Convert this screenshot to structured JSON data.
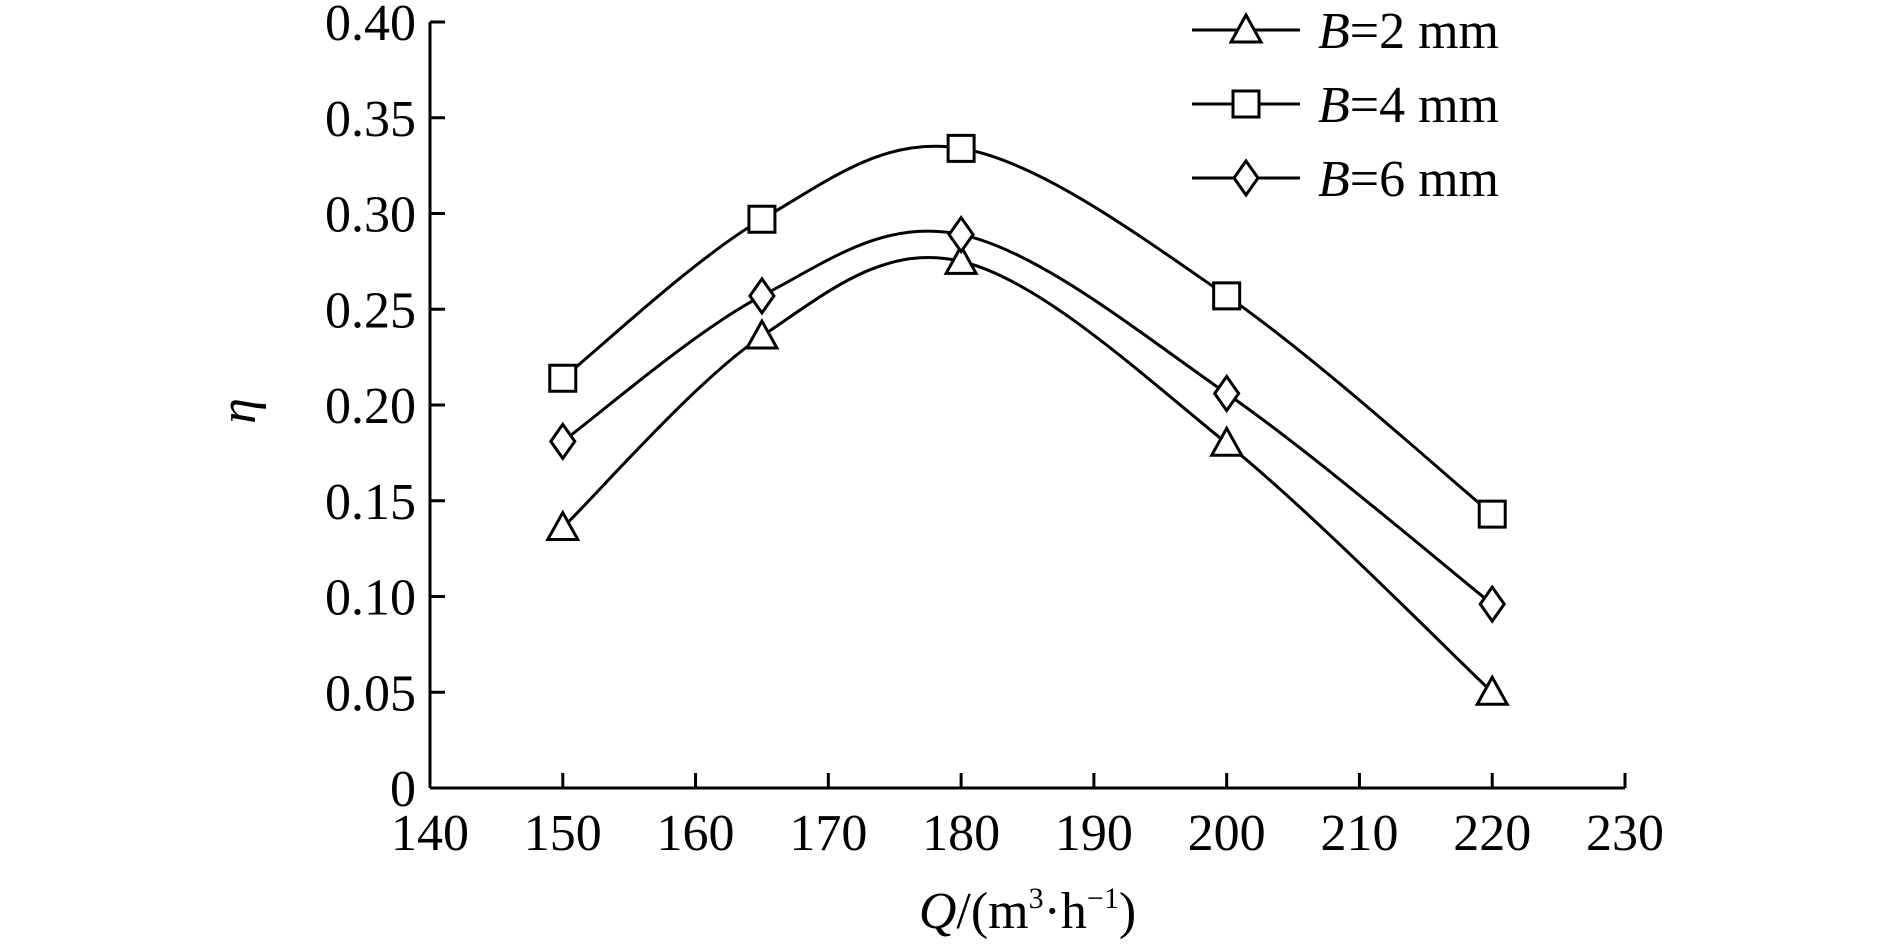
{
  "chart_data": {
    "type": "line",
    "xlabel": {
      "var": "Q",
      "unit_open": "/(m",
      "sup1": "3",
      "mid": "·h",
      "sup2": "−1",
      "close": ")"
    },
    "ylabel": "η",
    "xlim": [
      140,
      230
    ],
    "ylim": [
      0,
      0.4
    ],
    "x_ticks": [
      140,
      150,
      160,
      170,
      180,
      190,
      200,
      210,
      220,
      230
    ],
    "x_tick_labels": [
      "140",
      "150",
      "160",
      "170",
      "180",
      "190",
      "200",
      "210",
      "220",
      "230"
    ],
    "y_ticks": [
      0,
      0.05,
      0.1,
      0.15,
      0.2,
      0.25,
      0.3,
      0.35,
      0.4
    ],
    "y_tick_labels": [
      "0",
      "0.05",
      "0.10",
      "0.15",
      "0.20",
      "0.25",
      "0.30",
      "0.35",
      "0.40"
    ],
    "legend_position": "top-right",
    "series": [
      {
        "name": "B=2 mm",
        "legend": {
          "var": "B",
          "rest": "=2 mm"
        },
        "marker": "triangle",
        "x": [
          150,
          165,
          180,
          200,
          220
        ],
        "y": [
          0.136,
          0.236,
          0.275,
          0.18,
          0.05
        ]
      },
      {
        "name": "B=4 mm",
        "legend": {
          "var": "B",
          "rest": "=4 mm"
        },
        "marker": "square",
        "x": [
          150,
          165,
          180,
          200,
          220
        ],
        "y": [
          0.214,
          0.297,
          0.334,
          0.257,
          0.143
        ]
      },
      {
        "name": "B=6 mm",
        "legend": {
          "var": "B",
          "rest": "=6 mm"
        },
        "marker": "diamond",
        "x": [
          150,
          165,
          180,
          200,
          220
        ],
        "y": [
          0.181,
          0.257,
          0.289,
          0.206,
          0.096
        ]
      }
    ]
  }
}
